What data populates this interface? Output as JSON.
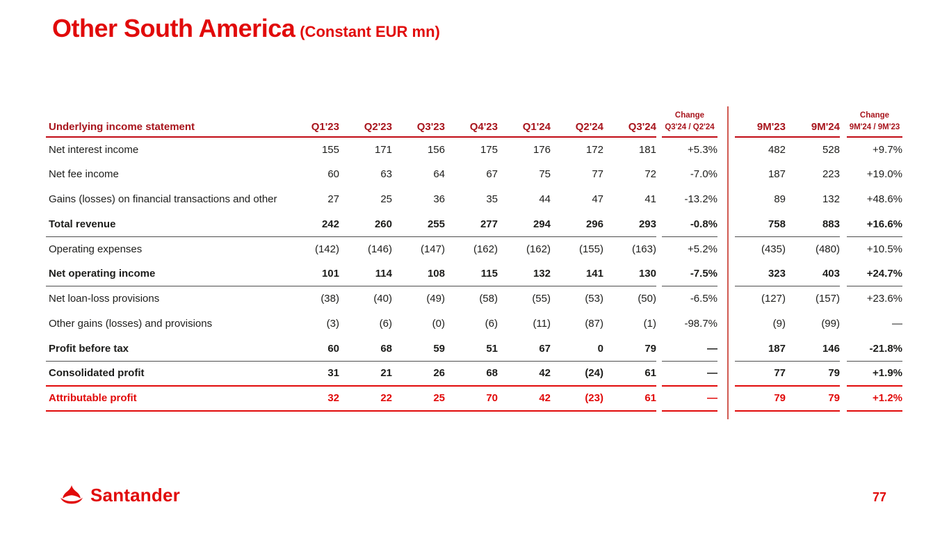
{
  "slide": {
    "title": "Other South America",
    "subtitle": "(Constant EUR mn)",
    "page_number": "77",
    "logo_text": "Santander"
  },
  "colors": {
    "red_bright": "#e10a0a",
    "red_dark": "#a8151d",
    "red_underline": "#c10b15",
    "red_divider": "#d05a52",
    "ink": "#1d1d1b",
    "rule_thin": "#4d4d4d"
  },
  "table": {
    "header": {
      "label": "Underlying income statement",
      "quarters": [
        "Q1'23",
        "Q2'23",
        "Q3'23",
        "Q4'23",
        "Q1'24",
        "Q2'24",
        "Q3'24"
      ],
      "change_q": {
        "title": "Change",
        "sub": "Q3'24 / Q2'24"
      },
      "periods": [
        "9M'23",
        "9M'24"
      ],
      "change_9m": {
        "title": "Change",
        "sub": "9M'24 / 9M'23"
      }
    },
    "rows": [
      {
        "label": "Net interest income",
        "values": [
          "155",
          "171",
          "156",
          "175",
          "176",
          "172",
          "181"
        ],
        "change_q": "+5.3%",
        "nine_m": [
          "482",
          "528"
        ],
        "change_9m": "+9.7%",
        "style": "normal",
        "rule": "none"
      },
      {
        "label": "Net fee income",
        "values": [
          "60",
          "63",
          "64",
          "67",
          "75",
          "77",
          "72"
        ],
        "change_q": "-7.0%",
        "nine_m": [
          "187",
          "223"
        ],
        "change_9m": "+19.0%",
        "style": "normal",
        "rule": "none"
      },
      {
        "label": "Gains (losses) on financial transactions and other",
        "values": [
          "27",
          "25",
          "36",
          "35",
          "44",
          "47",
          "41"
        ],
        "change_q": "-13.2%",
        "nine_m": [
          "89",
          "132"
        ],
        "change_9m": "+48.6%",
        "style": "normal",
        "rule": "none"
      },
      {
        "label": "Total revenue",
        "values": [
          "242",
          "260",
          "255",
          "277",
          "294",
          "296",
          "293"
        ],
        "change_q": "-0.8%",
        "nine_m": [
          "758",
          "883"
        ],
        "change_9m": "+16.6%",
        "style": "bold",
        "rule": "thin"
      },
      {
        "label": "Operating expenses",
        "values": [
          "(142)",
          "(146)",
          "(147)",
          "(162)",
          "(162)",
          "(155)",
          "(163)"
        ],
        "change_q": "+5.2%",
        "nine_m": [
          "(435)",
          "(480)"
        ],
        "change_9m": "+10.5%",
        "style": "normal",
        "rule": "none"
      },
      {
        "label": "Net operating income",
        "values": [
          "101",
          "114",
          "108",
          "115",
          "132",
          "141",
          "130"
        ],
        "change_q": "-7.5%",
        "nine_m": [
          "323",
          "403"
        ],
        "change_9m": "+24.7%",
        "style": "bold",
        "rule": "thin"
      },
      {
        "label": "Net loan-loss provisions",
        "values": [
          "(38)",
          "(40)",
          "(49)",
          "(58)",
          "(55)",
          "(53)",
          "(50)"
        ],
        "change_q": "-6.5%",
        "nine_m": [
          "(127)",
          "(157)"
        ],
        "change_9m": "+23.6%",
        "style": "normal",
        "rule": "none"
      },
      {
        "label": "Other gains (losses) and provisions",
        "values": [
          "(3)",
          "(6)",
          "(0)",
          "(6)",
          "(11)",
          "(87)",
          "(1)"
        ],
        "change_q": "-98.7%",
        "nine_m": [
          "(9)",
          "(99)"
        ],
        "change_9m": "—",
        "style": "normal",
        "rule": "none"
      },
      {
        "label": "Profit before tax",
        "values": [
          "60",
          "68",
          "59",
          "51",
          "67",
          "0",
          "79"
        ],
        "change_q": "—",
        "nine_m": [
          "187",
          "146"
        ],
        "change_9m": "-21.8%",
        "style": "bold",
        "rule": "thin"
      },
      {
        "label": "Consolidated profit",
        "values": [
          "31",
          "21",
          "26",
          "68",
          "42",
          "(24)",
          "61"
        ],
        "change_q": "—",
        "nine_m": [
          "77",
          "79"
        ],
        "change_9m": "+1.9%",
        "style": "bold",
        "rule": "red"
      },
      {
        "label": "Attributable profit",
        "values": [
          "32",
          "22",
          "25",
          "70",
          "42",
          "(23)",
          "61"
        ],
        "change_q": "—",
        "nine_m": [
          "79",
          "79"
        ],
        "change_9m": "+1.2%",
        "style": "bold-red",
        "rule": "red"
      }
    ]
  }
}
